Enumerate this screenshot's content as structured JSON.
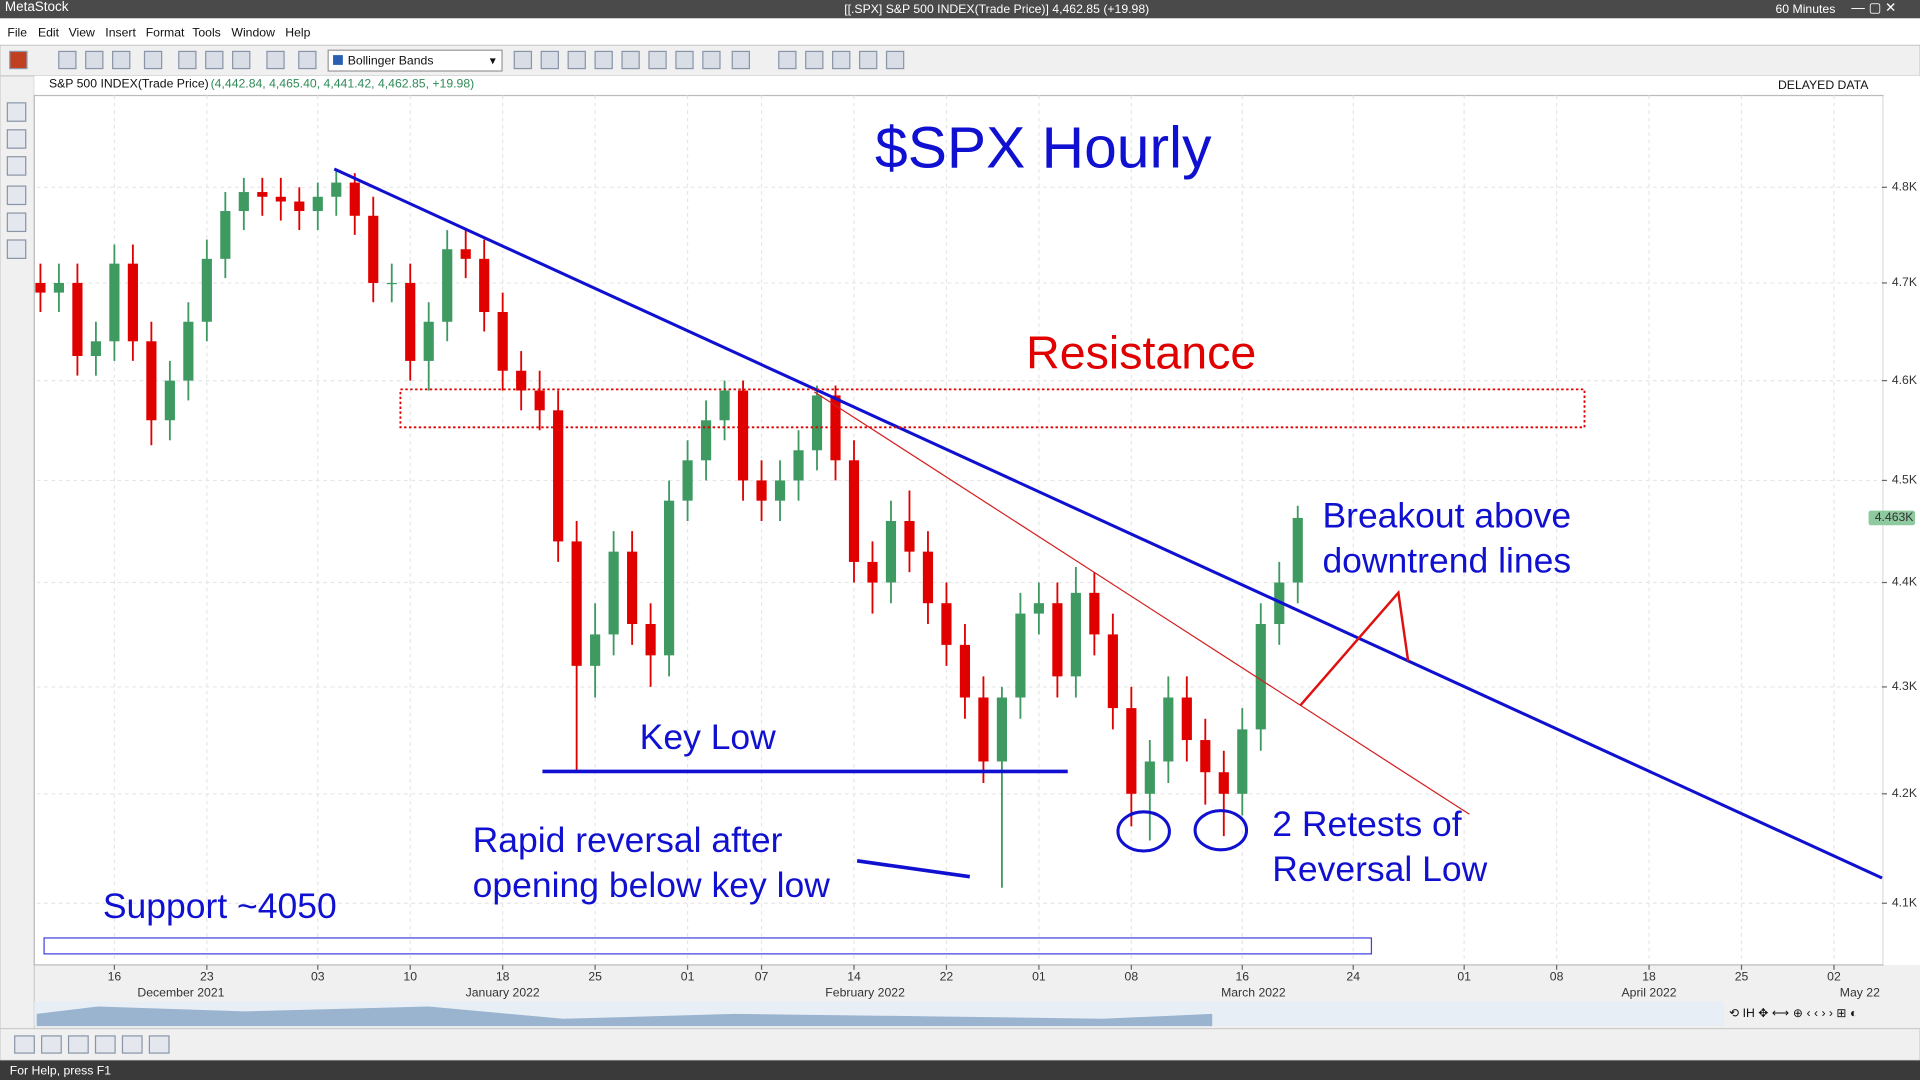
{
  "window": {
    "app": "MetaStock",
    "title": "[[.SPX] S&P 500 INDEX(Trade Price)]   4,462.85 (+19.98)",
    "interval": "60 Minutes",
    "menu": [
      "File",
      "Edit",
      "View",
      "Insert",
      "Format",
      "Tools",
      "Window",
      "Help"
    ],
    "indicator": "Bollinger Bands",
    "delayed": "DELAYED DATA",
    "status": "For Help, press F1"
  },
  "chart_data": {
    "type": "candlestick",
    "title": "$SPX Hourly",
    "security": "S&P 500 INDEX(Trade Price)",
    "security_values": "(4,442.84, 4,465.40, 4,441.42, 4,462.85, +19.98)",
    "annotations": {
      "resistance": "Resistance",
      "key_low": "Key Low",
      "rapid_1": "Rapid reversal after",
      "rapid_2": "opening below key low",
      "retest_1": "2 Retests of",
      "retest_2": "Reversal Low",
      "breakout_1": "Breakout above",
      "breakout_2": "downtrend lines",
      "support": "Support ~4050"
    },
    "log_scale": true,
    "up_color": "#3f9a62",
    "down_color": "#e00000",
    "ylim": [
      4048,
      4898
    ],
    "yticks": [
      {
        "value": 4100,
        "label": "4.1K"
      },
      {
        "value": 4200,
        "label": "4.2K"
      },
      {
        "value": 4300,
        "label": "4.3K"
      },
      {
        "value": 4400,
        "label": "4.4K"
      },
      {
        "value": 4500,
        "label": "4.5K"
      },
      {
        "value": 4600,
        "label": "4.6K"
      },
      {
        "value": 4700,
        "label": "4.7K"
      },
      {
        "value": 4800,
        "label": "4.8K"
      }
    ],
    "last_label": "4.463K",
    "xlim": [
      -4.2,
      95.6
    ],
    "xticks": [
      {
        "value": 0,
        "label": "16"
      },
      {
        "value": 5,
        "label": "23"
      },
      {
        "value": 11,
        "label": "03"
      },
      {
        "value": 16,
        "label": "10"
      },
      {
        "value": 21,
        "label": "18"
      },
      {
        "value": 26,
        "label": "25"
      },
      {
        "value": 31,
        "label": "01"
      },
      {
        "value": 35,
        "label": "07"
      },
      {
        "value": 40,
        "label": "14"
      },
      {
        "value": 45,
        "label": "22"
      },
      {
        "value": 50,
        "label": "01"
      },
      {
        "value": 55,
        "label": "08"
      },
      {
        "value": 61,
        "label": "16"
      },
      {
        "value": 67,
        "label": "24"
      },
      {
        "value": 73,
        "label": "01"
      },
      {
        "value": 78,
        "label": "08"
      },
      {
        "value": 83,
        "label": "18"
      },
      {
        "value": 88,
        "label": "25"
      },
      {
        "value": 93,
        "label": "02"
      }
    ],
    "xmonths": [
      {
        "value": 3.6,
        "label": "December 2021"
      },
      {
        "value": 21,
        "label": "January 2022"
      },
      {
        "value": 40.6,
        "label": "February 2022"
      },
      {
        "value": 61.6,
        "label": "March 2022"
      },
      {
        "value": 83,
        "label": "April 2022"
      },
      {
        "value": 94.4,
        "label": "May 22"
      }
    ],
    "x": [
      -4,
      -3,
      -2,
      -1,
      0,
      1,
      2,
      3,
      4,
      5,
      6,
      7,
      8,
      9,
      10,
      11,
      12,
      13,
      14,
      15,
      16,
      17,
      18,
      19,
      20,
      21,
      22,
      23,
      24,
      25,
      26,
      27,
      28,
      29,
      30,
      31,
      32,
      33,
      34,
      35,
      36,
      37,
      38,
      39,
      40,
      41,
      42,
      43,
      44,
      45,
      46,
      47,
      48,
      49,
      50,
      51,
      52,
      53,
      54,
      55,
      56,
      57,
      58,
      59,
      60,
      61,
      62,
      63,
      64
    ],
    "open": [
      4700,
      4690,
      4700,
      4625,
      4640,
      4720,
      4640,
      4560,
      4600,
      4660,
      4725,
      4775,
      4795,
      4790,
      4785,
      4775,
      4790,
      4805,
      4770,
      4700,
      4700,
      4620,
      4660,
      4735,
      4725,
      4670,
      4610,
      4590,
      4570,
      4440,
      4320,
      4350,
      4430,
      4360,
      4330,
      4480,
      4520,
      4560,
      4590,
      4500,
      4480,
      4500,
      4530,
      4585,
      4520,
      4420,
      4400,
      4460,
      4430,
      4380,
      4340,
      4290,
      4230,
      4290,
      4370,
      4380,
      4310,
      4390,
      4350,
      4280,
      4200,
      4230,
      4290,
      4250,
      4220,
      4200,
      4260,
      4360,
      4400
    ],
    "high": [
      4720,
      4720,
      4720,
      4660,
      4740,
      4740,
      4660,
      4620,
      4680,
      4745,
      4795,
      4810,
      4810,
      4810,
      4800,
      4805,
      4818,
      4815,
      4790,
      4720,
      4720,
      4680,
      4755,
      4755,
      4745,
      4690,
      4630,
      4610,
      4590,
      4460,
      4380,
      4450,
      4450,
      4380,
      4500,
      4540,
      4580,
      4600,
      4600,
      4520,
      4520,
      4550,
      4595,
      4595,
      4540,
      4440,
      4480,
      4490,
      4450,
      4400,
      4360,
      4310,
      4300,
      4390,
      4400,
      4400,
      4415,
      4410,
      4370,
      4300,
      4250,
      4310,
      4310,
      4270,
      4240,
      4280,
      4380,
      4420,
      4475
    ],
    "low": [
      4670,
      4670,
      4605,
      4605,
      4620,
      4620,
      4535,
      4540,
      4580,
      4640,
      4705,
      4755,
      4770,
      4765,
      4755,
      4755,
      4770,
      4750,
      4680,
      4680,
      4600,
      4590,
      4640,
      4705,
      4650,
      4590,
      4570,
      4550,
      4420,
      4222,
      4290,
      4330,
      4340,
      4300,
      4310,
      4460,
      4500,
      4540,
      4480,
      4460,
      4460,
      4480,
      4510,
      4500,
      4400,
      4370,
      4380,
      4410,
      4360,
      4320,
      4270,
      4210,
      4114,
      4270,
      4350,
      4290,
      4290,
      4330,
      4260,
      4170,
      4157,
      4210,
      4230,
      4190,
      4161,
      4180,
      4240,
      4340,
      4380
    ],
    "close": [
      4690,
      4700,
      4625,
      4640,
      4720,
      4640,
      4560,
      4600,
      4660,
      4725,
      4775,
      4795,
      4790,
      4785,
      4775,
      4790,
      4805,
      4770,
      4700,
      4700,
      4620,
      4660,
      4735,
      4725,
      4670,
      4610,
      4590,
      4570,
      4440,
      4320,
      4350,
      4430,
      4360,
      4330,
      4480,
      4520,
      4560,
      4590,
      4500,
      4480,
      4500,
      4530,
      4585,
      4520,
      4420,
      4400,
      4460,
      4430,
      4380,
      4340,
      4290,
      4230,
      4290,
      4370,
      4380,
      4310,
      4390,
      4350,
      4280,
      4200,
      4230,
      4290,
      4250,
      4220,
      4200,
      4260,
      4360,
      4400,
      4463
    ]
  }
}
